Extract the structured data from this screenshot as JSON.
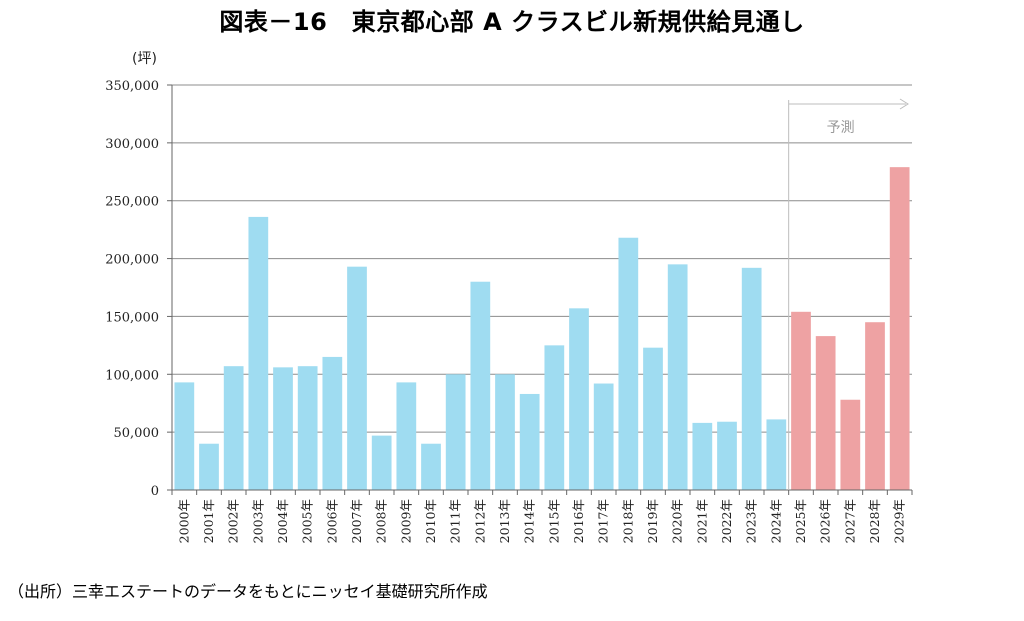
{
  "title": "図表－16　東京都心部 A クラスビル新規供給見通し",
  "source": "（出所）三幸エステートのデータをもとにニッセイ基礎研究所作成",
  "chart_data": {
    "type": "bar",
    "title": "図表－16　東京都心部 A クラスビル新規供給見通し",
    "ylabel": "(坪)",
    "xlabel": "",
    "ylim": [
      0,
      350000
    ],
    "yticks": [
      0,
      50000,
      100000,
      150000,
      200000,
      250000,
      300000,
      350000
    ],
    "ytick_labels": [
      "0",
      "50,000",
      "100,000",
      "150,000",
      "200,000",
      "250,000",
      "300,000",
      "350,000"
    ],
    "grid": true,
    "categories": [
      "2000年",
      "2001年",
      "2002年",
      "2003年",
      "2004年",
      "2005年",
      "2006年",
      "2007年",
      "2008年",
      "2009年",
      "2010年",
      "2011年",
      "2012年",
      "2013年",
      "2014年",
      "2015年",
      "2016年",
      "2017年",
      "2018年",
      "2019年",
      "2020年",
      "2021年",
      "2022年",
      "2023年",
      "2024年",
      "2025年",
      "2026年",
      "2027年",
      "2028年",
      "2029年"
    ],
    "values": [
      93000,
      40000,
      107000,
      236000,
      106000,
      107000,
      115000,
      193000,
      47000,
      93000,
      40000,
      100000,
      180000,
      100000,
      83000,
      125000,
      157000,
      92000,
      218000,
      123000,
      195000,
      58000,
      59000,
      192000,
      61000,
      154000,
      133000,
      78000,
      145000,
      279000
    ],
    "forecast_start_index": 25,
    "forecast_label": "予測",
    "colors": {
      "actual": "#9fdcf1",
      "forecast": "#eea2a3"
    }
  }
}
